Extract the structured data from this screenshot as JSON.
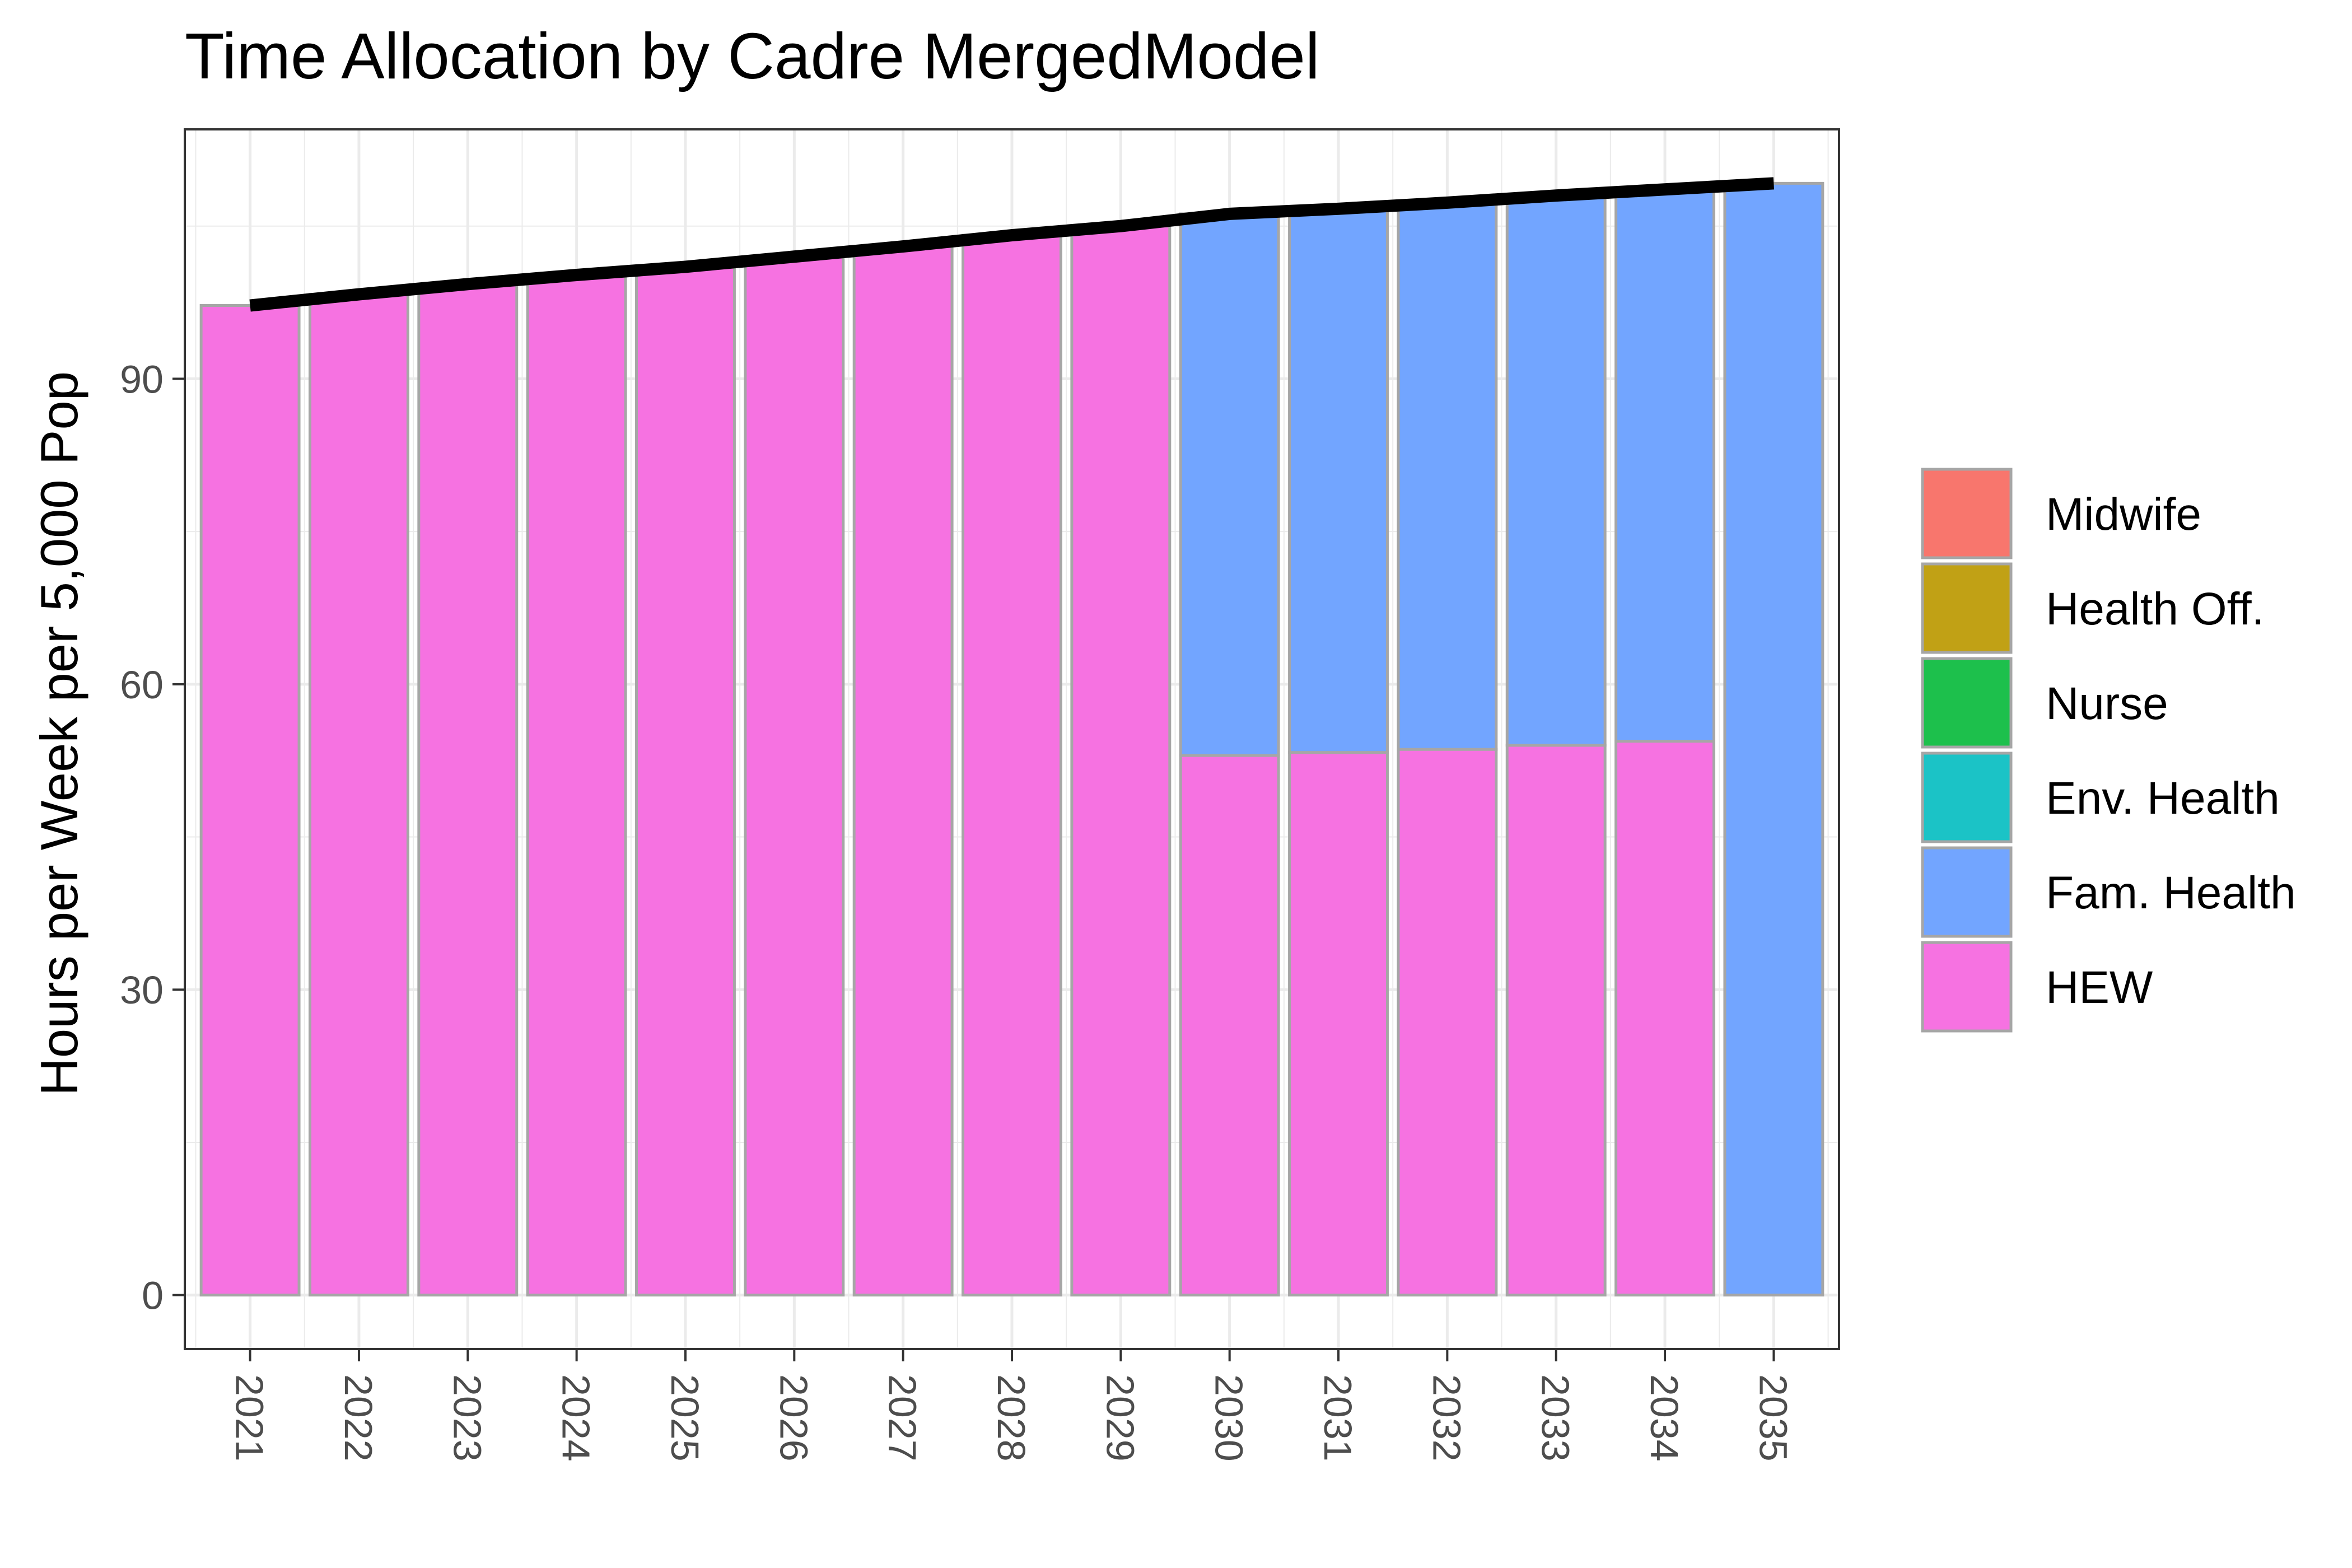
{
  "chart_data": {
    "type": "bar",
    "stacked": true,
    "title": "Time Allocation by Cadre MergedModel",
    "xlabel": "",
    "ylabel": "Hours per Week per 5,000 Pop",
    "categories": [
      "2021",
      "2022",
      "2023",
      "2024",
      "2025",
      "2026",
      "2027",
      "2028",
      "2029",
      "2030",
      "2031",
      "2032",
      "2033",
      "2034",
      "2035"
    ],
    "ylim": [
      -5.3,
      114.5
    ],
    "yticks": [
      0,
      30,
      60,
      90
    ],
    "ytick_labels": [
      "0",
      "30",
      "60",
      "90"
    ],
    "grid": true,
    "legend_position": "right",
    "series": [
      {
        "name": "Midwife",
        "color": "#F8766D",
        "values": [
          0,
          0,
          0,
          0,
          0,
          0,
          0,
          0,
          0,
          0,
          0,
          0,
          0,
          0,
          0
        ]
      },
      {
        "name": "Health Off.",
        "color": "#C1A115",
        "values": [
          0,
          0,
          0,
          0,
          0,
          0,
          0,
          0,
          0,
          0,
          0,
          0,
          0,
          0,
          0
        ]
      },
      {
        "name": "Nurse",
        "color": "#1DC04C",
        "values": [
          0,
          0,
          0,
          0,
          0,
          0,
          0,
          0,
          0,
          0,
          0,
          0,
          0,
          0,
          0
        ]
      },
      {
        "name": "Env. Health",
        "color": "#1BC3C6",
        "values": [
          0,
          0,
          0,
          0,
          0,
          0,
          0,
          0,
          0,
          0,
          0,
          0,
          0,
          0,
          0
        ]
      },
      {
        "name": "Fam. Health",
        "color": "#72A5FF",
        "values": [
          0,
          0,
          0,
          0,
          0,
          0,
          0,
          0,
          0,
          53.2,
          53.4,
          53.7,
          54.0,
          54.2,
          109.2
        ]
      },
      {
        "name": "HEW",
        "color": "#F672E1",
        "values": [
          97.2,
          98.3,
          99.3,
          100.2,
          101.0,
          102.0,
          103.0,
          104.1,
          105.0,
          53.0,
          53.3,
          53.6,
          54.0,
          54.4,
          0
        ]
      }
    ],
    "total_line": {
      "color": "#000000",
      "values": [
        97.2,
        98.3,
        99.3,
        100.2,
        101.0,
        102.0,
        103.0,
        104.1,
        105.0,
        106.2,
        106.7,
        107.3,
        108.0,
        108.6,
        109.2
      ]
    }
  }
}
